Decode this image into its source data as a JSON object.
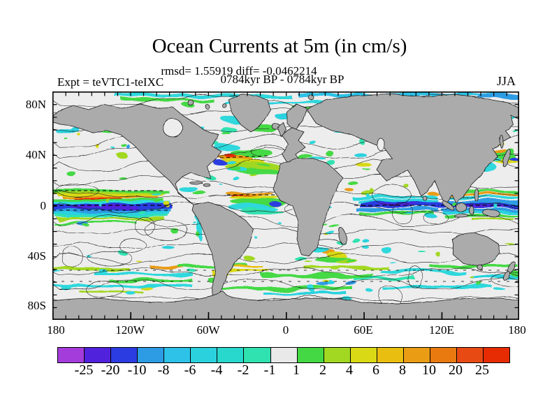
{
  "header": {
    "title": "Ocean Currents at 5m (in cm/s)",
    "stats_line": "rmsd= 1.55919 diff= -0.0462214",
    "period_line": "0784kyr BP - 0784kyr BP",
    "experiment_label": "Expt = teVTC1-teIXC",
    "season_label": "JJA"
  },
  "map": {
    "lat_ticks": [
      "80N",
      "40N",
      "0",
      "40S",
      "80S"
    ],
    "lon_ticks": [
      "180",
      "120W",
      "60W",
      "0",
      "60E",
      "120E",
      "180"
    ],
    "land_color": "#ABABAB",
    "ocean_color": "#EDEDED"
  },
  "colorbar": {
    "tick_labels": [
      "-25",
      "-20",
      "-10",
      "-8",
      "-6",
      "-4",
      "-2",
      "-1",
      "1",
      "2",
      "4",
      "6",
      "8",
      "10",
      "20",
      "25"
    ],
    "segment_colors": [
      "#A43CDB",
      "#5122DC",
      "#2B3CE0",
      "#2D9CE4",
      "#2EC2E8",
      "#2BD2DE",
      "#28D8CC",
      "#30E2B0",
      "#E9E9E9",
      "#44D944",
      "#A2D822",
      "#D9D916",
      "#E9BE10",
      "#E99C14",
      "#E87A10",
      "#E84A14",
      "#E72C04"
    ]
  },
  "chart_data": {
    "type": "heatmap",
    "title": "Ocean Currents at 5m (in cm/s)",
    "rmsd": 1.55919,
    "diff": -0.0462214,
    "period": "0784kyr BP - 0784kyr BP",
    "experiment": "teVTC1-teIXC",
    "season": "JJA",
    "units": "cm/s",
    "projection": "equirectangular world map, difference field with contour overlay",
    "x_axis": {
      "label": "longitude",
      "tick_labels": [
        "180",
        "120W",
        "60W",
        "0",
        "60E",
        "120E",
        "180"
      ],
      "range_deg": [
        -180,
        180
      ]
    },
    "y_axis": {
      "label": "latitude",
      "tick_labels": [
        "80N",
        "40N",
        "0",
        "40S",
        "80S"
      ],
      "range_deg": [
        -90,
        90
      ]
    },
    "color_scale": {
      "levels": [
        -25,
        -20,
        -10,
        -8,
        -6,
        -4,
        -2,
        -1,
        1,
        2,
        4,
        6,
        8,
        10,
        20,
        25
      ],
      "colors": [
        "#A43CDB",
        "#5122DC",
        "#2B3CE0",
        "#2D9CE4",
        "#2EC2E8",
        "#2BD2DE",
        "#28D8CC",
        "#30E2B0",
        "#E9E9E9",
        "#44D944",
        "#A2D822",
        "#D9D916",
        "#E9BE10",
        "#E99C14",
        "#E87A10",
        "#E84A14",
        "#E72C04"
      ],
      "legend_position": "bottom"
    },
    "grid": false,
    "notes_visible_features": "strong negative (blue) anomaly bands along equatorial Pacific and Indian Ocean; positive (yellow/orange) patches in Gulf Stream, equatorial Atlantic and Kuroshio; scattered cyan/green anomalies in Southern Ocean and high latitudes"
  }
}
